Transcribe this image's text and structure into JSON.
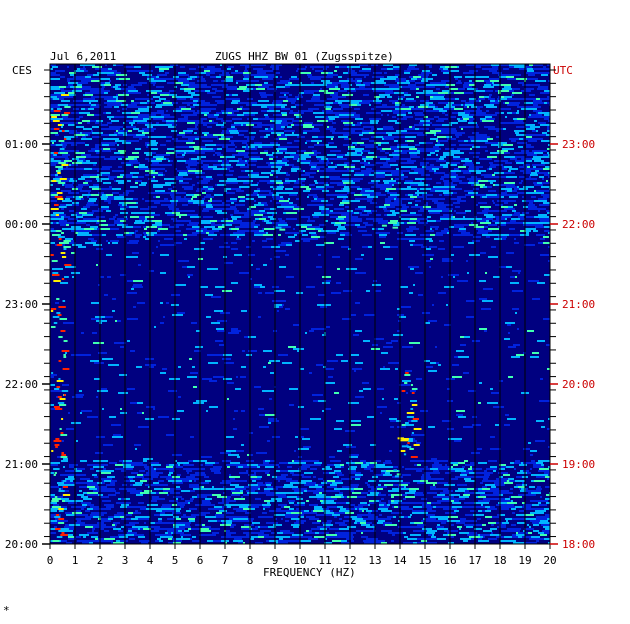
{
  "chart_data": {
    "type": "heatmap",
    "date": "Jul 6,2011",
    "title": "ZUGS HHZ BW 01 (Zugsspitze)",
    "left_label": "CES",
    "right_label": "UTC",
    "xlabel": "FREQUENCY (HZ)",
    "x_ticks": [
      "0",
      "1",
      "2",
      "3",
      "4",
      "5",
      "6",
      "7",
      "8",
      "9",
      "10",
      "11",
      "12",
      "13",
      "14",
      "15",
      "16",
      "17",
      "18",
      "19",
      "20"
    ],
    "xlim": [
      0,
      20
    ],
    "left_time_ticks": [
      "01:00",
      "00:00",
      "23:00",
      "22:00",
      "21:00",
      "20:00"
    ],
    "right_time_ticks": [
      "23:00",
      "22:00",
      "21:00",
      "20:00",
      "19:00",
      "18:00"
    ],
    "grid": true,
    "colors": {
      "background": "#000080",
      "low": "#0022dd",
      "mid": "#00b4ff",
      "high": "#40ffb0",
      "peak": "#ffee00",
      "max": "#ff2000",
      "gridline": "#000000",
      "right_axis": "#cc0000"
    },
    "features": [
      {
        "freq_hz": 0.3,
        "time_utc": "18:00-23:40",
        "intensity": "high"
      },
      {
        "freq_hz": 14.3,
        "time_utc": "19:00-20:10",
        "intensity": "high"
      },
      {
        "freq_hz": 14.0,
        "time_utc": "18:50-19:20",
        "intensity": "medium"
      },
      {
        "freq_hz": 18.5,
        "time_utc": "18:45",
        "intensity": "medium"
      },
      {
        "freq_hz": 9.0,
        "time_utc": "21:55",
        "intensity": "low"
      },
      {
        "freq_hz": 13.5,
        "time_utc": "21:55",
        "intensity": "low"
      }
    ],
    "bottom_mark": "*"
  }
}
